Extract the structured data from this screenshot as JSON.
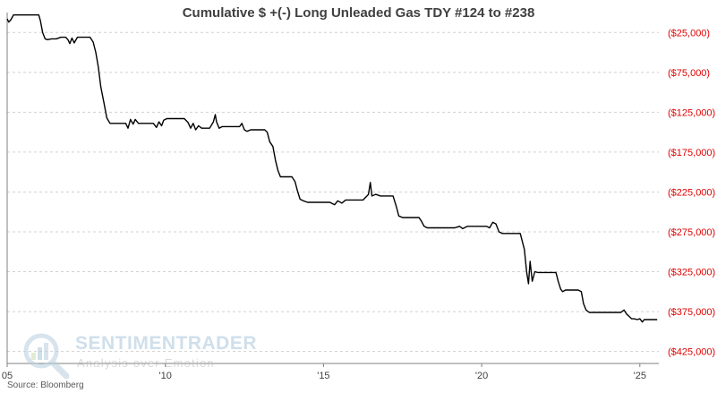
{
  "chart_data": {
    "type": "line",
    "title": "Cumulative $ +(-) Long Unleaded Gas TDY #124 to #238",
    "xlabel": "",
    "ylabel": "",
    "xlim": [
      2005.0,
      2025.6
    ],
    "ylim": [
      -440000,
      0
    ],
    "x_tick_labels": [
      {
        "value": 2005.0,
        "label": "05"
      },
      {
        "value": 2010.0,
        "label": "'10"
      },
      {
        "value": 2015.0,
        "label": "'15"
      },
      {
        "value": 2020.0,
        "label": "'20"
      },
      {
        "value": 2025.0,
        "label": "'25"
      }
    ],
    "y_tick_labels": [
      {
        "value": -25000,
        "label": "($25,000)"
      },
      {
        "value": -75000,
        "label": "($75,000)"
      },
      {
        "value": -125000,
        "label": "($125,000)"
      },
      {
        "value": -175000,
        "label": "($175,000)"
      },
      {
        "value": -225000,
        "label": "($225,000)"
      },
      {
        "value": -275000,
        "label": "($275,000)"
      },
      {
        "value": -325000,
        "label": "($325,000)"
      },
      {
        "value": -375000,
        "label": "($375,000)"
      },
      {
        "value": -425000,
        "label": "($425,000)"
      }
    ],
    "grid": "horizontal-dashed",
    "series": [
      {
        "color": "#000000",
        "points": [
          [
            2005.0,
            -8000
          ],
          [
            2005.05,
            -12000
          ],
          [
            2005.12,
            -9000
          ],
          [
            2005.2,
            -3000
          ],
          [
            2006.0,
            -3000
          ],
          [
            2006.05,
            -10000
          ],
          [
            2006.12,
            -25000
          ],
          [
            2006.2,
            -33000
          ],
          [
            2006.28,
            -34000
          ],
          [
            2006.4,
            -33000
          ],
          [
            2006.55,
            -33000
          ],
          [
            2006.7,
            -31000
          ],
          [
            2006.85,
            -31000
          ],
          [
            2006.92,
            -34000
          ],
          [
            2006.98,
            -39000
          ],
          [
            2007.05,
            -32000
          ],
          [
            2007.12,
            -38000
          ],
          [
            2007.22,
            -31000
          ],
          [
            2007.3,
            -31000
          ],
          [
            2007.4,
            -31000
          ],
          [
            2007.5,
            -31000
          ],
          [
            2007.62,
            -31000
          ],
          [
            2007.72,
            -37000
          ],
          [
            2007.8,
            -50000
          ],
          [
            2007.88,
            -68000
          ],
          [
            2007.96,
            -93000
          ],
          [
            2008.06,
            -113000
          ],
          [
            2008.15,
            -132000
          ],
          [
            2008.25,
            -139000
          ],
          [
            2008.4,
            -139000
          ],
          [
            2008.6,
            -139000
          ],
          [
            2008.75,
            -139000
          ],
          [
            2008.82,
            -145000
          ],
          [
            2008.9,
            -134000
          ],
          [
            2008.98,
            -140000
          ],
          [
            2009.05,
            -134000
          ],
          [
            2009.15,
            -139000
          ],
          [
            2009.3,
            -139000
          ],
          [
            2009.45,
            -139000
          ],
          [
            2009.62,
            -139000
          ],
          [
            2009.72,
            -144000
          ],
          [
            2009.8,
            -137000
          ],
          [
            2009.88,
            -142000
          ],
          [
            2009.95,
            -135000
          ],
          [
            2010.05,
            -133000
          ],
          [
            2010.2,
            -133000
          ],
          [
            2010.4,
            -133000
          ],
          [
            2010.6,
            -133000
          ],
          [
            2010.72,
            -138000
          ],
          [
            2010.8,
            -145000
          ],
          [
            2010.88,
            -139000
          ],
          [
            2010.96,
            -147000
          ],
          [
            2011.05,
            -142000
          ],
          [
            2011.15,
            -145000
          ],
          [
            2011.28,
            -145000
          ],
          [
            2011.4,
            -145000
          ],
          [
            2011.52,
            -137000
          ],
          [
            2011.58,
            -128000
          ],
          [
            2011.62,
            -137000
          ],
          [
            2011.7,
            -145000
          ],
          [
            2011.8,
            -143000
          ],
          [
            2011.9,
            -143000
          ],
          [
            2012.05,
            -143000
          ],
          [
            2012.2,
            -143000
          ],
          [
            2012.35,
            -143000
          ],
          [
            2012.42,
            -139000
          ],
          [
            2012.5,
            -147000
          ],
          [
            2012.58,
            -149000
          ],
          [
            2012.7,
            -147000
          ],
          [
            2012.8,
            -147000
          ],
          [
            2012.92,
            -147000
          ],
          [
            2013.02,
            -147000
          ],
          [
            2013.14,
            -147000
          ],
          [
            2013.22,
            -150000
          ],
          [
            2013.3,
            -162000
          ],
          [
            2013.4,
            -168000
          ],
          [
            2013.48,
            -185000
          ],
          [
            2013.56,
            -198000
          ],
          [
            2013.64,
            -206000
          ],
          [
            2013.72,
            -206000
          ],
          [
            2013.86,
            -206000
          ],
          [
            2014.0,
            -206000
          ],
          [
            2014.1,
            -212000
          ],
          [
            2014.18,
            -224000
          ],
          [
            2014.26,
            -234000
          ],
          [
            2014.36,
            -236000
          ],
          [
            2014.5,
            -238000
          ],
          [
            2014.7,
            -238000
          ],
          [
            2014.9,
            -238000
          ],
          [
            2015.05,
            -238000
          ],
          [
            2015.2,
            -238000
          ],
          [
            2015.35,
            -241000
          ],
          [
            2015.45,
            -236000
          ],
          [
            2015.58,
            -239000
          ],
          [
            2015.7,
            -235000
          ],
          [
            2015.8,
            -235000
          ],
          [
            2015.95,
            -235000
          ],
          [
            2016.1,
            -235000
          ],
          [
            2016.25,
            -235000
          ],
          [
            2016.35,
            -231000
          ],
          [
            2016.42,
            -228000
          ],
          [
            2016.48,
            -213000
          ],
          [
            2016.53,
            -230000
          ],
          [
            2016.65,
            -228000
          ],
          [
            2016.8,
            -230000
          ],
          [
            2016.95,
            -230000
          ],
          [
            2017.1,
            -230000
          ],
          [
            2017.2,
            -230000
          ],
          [
            2017.3,
            -243000
          ],
          [
            2017.38,
            -255000
          ],
          [
            2017.5,
            -257000
          ],
          [
            2017.7,
            -257000
          ],
          [
            2017.9,
            -257000
          ],
          [
            2018.02,
            -257000
          ],
          [
            2018.1,
            -262000
          ],
          [
            2018.18,
            -268000
          ],
          [
            2018.28,
            -270000
          ],
          [
            2018.45,
            -270000
          ],
          [
            2018.6,
            -270000
          ],
          [
            2018.8,
            -270000
          ],
          [
            2019.0,
            -270000
          ],
          [
            2019.15,
            -270000
          ],
          [
            2019.3,
            -268000
          ],
          [
            2019.4,
            -271000
          ],
          [
            2019.55,
            -268000
          ],
          [
            2019.7,
            -268000
          ],
          [
            2019.85,
            -268000
          ],
          [
            2020.0,
            -268000
          ],
          [
            2020.15,
            -268000
          ],
          [
            2020.25,
            -270000
          ],
          [
            2020.35,
            -263000
          ],
          [
            2020.45,
            -265000
          ],
          [
            2020.55,
            -275000
          ],
          [
            2020.65,
            -277000
          ],
          [
            2020.8,
            -277000
          ],
          [
            2020.9,
            -277000
          ],
          [
            2021.0,
            -277000
          ],
          [
            2021.1,
            -277000
          ],
          [
            2021.22,
            -277000
          ],
          [
            2021.35,
            -297000
          ],
          [
            2021.42,
            -325000
          ],
          [
            2021.48,
            -340000
          ],
          [
            2021.53,
            -312000
          ],
          [
            2021.6,
            -337000
          ],
          [
            2021.68,
            -325000
          ],
          [
            2021.78,
            -326000
          ],
          [
            2021.9,
            -326000
          ],
          [
            2022.05,
            -326000
          ],
          [
            2022.2,
            -326000
          ],
          [
            2022.35,
            -326000
          ],
          [
            2022.42,
            -337000
          ],
          [
            2022.5,
            -347000
          ],
          [
            2022.56,
            -350000
          ],
          [
            2022.65,
            -348000
          ],
          [
            2022.8,
            -348000
          ],
          [
            2022.92,
            -348000
          ],
          [
            2023.05,
            -348000
          ],
          [
            2023.15,
            -350000
          ],
          [
            2023.22,
            -365000
          ],
          [
            2023.3,
            -373000
          ],
          [
            2023.4,
            -376000
          ],
          [
            2023.6,
            -376000
          ],
          [
            2023.8,
            -376000
          ],
          [
            2023.95,
            -376000
          ],
          [
            2024.1,
            -376000
          ],
          [
            2024.25,
            -376000
          ],
          [
            2024.4,
            -376000
          ],
          [
            2024.5,
            -373000
          ],
          [
            2024.58,
            -378000
          ],
          [
            2024.66,
            -381000
          ],
          [
            2024.74,
            -384000
          ],
          [
            2024.82,
            -384000
          ],
          [
            2024.92,
            -385000
          ],
          [
            2025.0,
            -384000
          ],
          [
            2025.08,
            -388000
          ],
          [
            2025.14,
            -385000
          ],
          [
            2025.22,
            -385000
          ],
          [
            2025.35,
            -385000
          ],
          [
            2025.55,
            -385000
          ]
        ]
      }
    ]
  },
  "source_note": "Source: Bloomberg",
  "watermark": {
    "brand": "SENTIMENTRADER",
    "tagline": "Analysis over Emotion"
  },
  "colors": {
    "line": "#000000",
    "y_tick_text": "#e00000",
    "grid": "#d0d0d0",
    "axis": "#808080",
    "watermark_brand": "#a9c6dc"
  }
}
